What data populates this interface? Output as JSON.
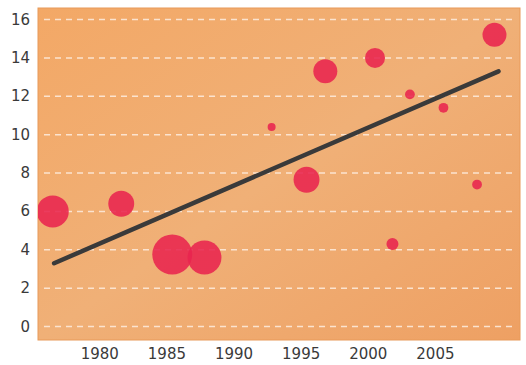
{
  "chart_data": {
    "type": "scatter",
    "xlim": [
      1975.4,
      2011.3
    ],
    "xticks": [
      1980,
      1985,
      1990,
      1995,
      2000,
      2005
    ],
    "ylim": [
      -0.7,
      16.6
    ],
    "yticks": [
      0,
      2,
      4,
      6,
      8,
      10,
      12,
      14,
      16
    ],
    "grid": true,
    "series": [
      {
        "type": "scatter",
        "marker": "circle",
        "color": "#e8244f",
        "x": [
          1976.5,
          1981.6,
          1985.4,
          1987.8,
          1992.8,
          1995.4,
          1996.8,
          2000.5,
          2001.8,
          2003.1,
          2005.6,
          2008.1,
          2009.4
        ],
        "values": [
          6.0,
          6.4,
          3.75,
          3.6,
          10.4,
          7.65,
          13.3,
          14.0,
          4.3,
          12.1,
          11.4,
          7.4,
          15.2
        ],
        "size": [
          64,
          42,
          100,
          72,
          4,
          42,
          36,
          25,
          9,
          6,
          6,
          6,
          36
        ]
      },
      {
        "type": "line",
        "line_style": "solid",
        "color": "#3a3a3a",
        "x": [
          1976.6,
          2009.7
        ],
        "values": [
          3.3,
          13.3
        ]
      }
    ]
  }
}
